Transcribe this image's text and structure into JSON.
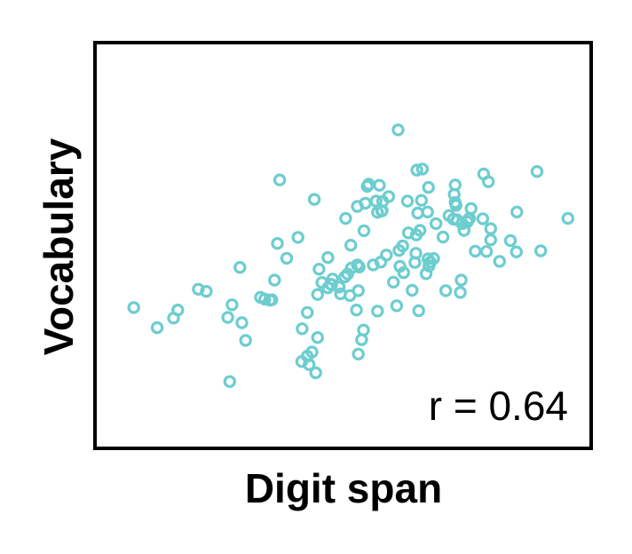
{
  "chart_data": {
    "type": "scatter",
    "title": "",
    "xlabel": "Digit span",
    "ylabel": "Vocabulary",
    "annotation": "r = 0.64",
    "xticks": false,
    "yticks": false,
    "grid": false,
    "legend": "none",
    "point_color": "#6dcdcf",
    "xlim": [
      0,
      100
    ],
    "ylim": [
      0,
      100
    ],
    "points": [
      [
        4.5,
        34.4
      ],
      [
        9.5,
        28.7
      ],
      [
        13.0,
        31.4
      ],
      [
        13.9,
        33.7
      ],
      [
        18.3,
        39.6
      ],
      [
        20.0,
        39.0
      ],
      [
        24.6,
        31.6
      ],
      [
        25.5,
        35.2
      ],
      [
        25.0,
        13.4
      ],
      [
        27.6,
        30.1
      ],
      [
        28.4,
        25.1
      ],
      [
        27.2,
        45.8
      ],
      [
        31.6,
        37.3
      ],
      [
        32.5,
        36.8
      ],
      [
        33.6,
        36.5
      ],
      [
        34.0,
        36.6
      ],
      [
        34.6,
        42.2
      ],
      [
        35.2,
        52.6
      ],
      [
        35.7,
        70.6
      ],
      [
        37.2,
        48.4
      ],
      [
        39.6,
        54.3
      ],
      [
        41.6,
        33.0
      ],
      [
        40.5,
        28.4
      ],
      [
        41.6,
        20.6
      ],
      [
        40.4,
        19.1
      ],
      [
        42.0,
        18.2
      ],
      [
        43.4,
        15.9
      ],
      [
        43.8,
        25.9
      ],
      [
        42.6,
        21.8
      ],
      [
        43.8,
        38.1
      ],
      [
        43.1,
        65.1
      ],
      [
        44.1,
        45.3
      ],
      [
        44.7,
        41.5
      ],
      [
        46.0,
        40.0
      ],
      [
        46.6,
        41.0
      ],
      [
        47.0,
        42.5
      ],
      [
        46.0,
        48.6
      ],
      [
        48.4,
        40.2
      ],
      [
        46.8,
        40.9
      ],
      [
        48.7,
        38.3
      ],
      [
        49.6,
        43.1
      ],
      [
        50.2,
        43.9
      ],
      [
        51.0,
        45.6
      ],
      [
        49.8,
        59.7
      ],
      [
        50.9,
        52.1
      ],
      [
        52.3,
        46.5
      ],
      [
        52.7,
        45.9
      ],
      [
        50.7,
        37.8
      ],
      [
        52.5,
        39.2
      ],
      [
        52.1,
        33.7
      ],
      [
        52.3,
        63.1
      ],
      [
        54.0,
        64.0
      ],
      [
        52.5,
        21.2
      ],
      [
        53.2,
        25.3
      ],
      [
        53.6,
        28.0
      ],
      [
        54.4,
        68.8
      ],
      [
        54.7,
        69.4
      ],
      [
        53.7,
        56.2
      ],
      [
        55.7,
        46.5
      ],
      [
        56.3,
        64.6
      ],
      [
        57.5,
        61.8
      ],
      [
        57.3,
        47.3
      ],
      [
        56.6,
        33.4
      ],
      [
        57.7,
        64.5
      ],
      [
        56.6,
        61.4
      ],
      [
        58.5,
        49.3
      ],
      [
        59.0,
        65.9
      ],
      [
        57.0,
        69.1
      ],
      [
        57.6,
        61.9
      ],
      [
        60.0,
        41.6
      ],
      [
        61.0,
        84.8
      ],
      [
        61.4,
        46.1
      ],
      [
        60.7,
        34.9
      ],
      [
        61.2,
        50.6
      ],
      [
        62.0,
        51.9
      ],
      [
        62.2,
        44.3
      ],
      [
        63.2,
        55.6
      ],
      [
        64.0,
        39.3
      ],
      [
        64.6,
        47.2
      ],
      [
        64.8,
        49.8
      ],
      [
        63.0,
        64.6
      ],
      [
        64.9,
        55.0
      ],
      [
        65.2,
        61.2
      ],
      [
        65.0,
        73.4
      ],
      [
        65.4,
        33.5
      ],
      [
        65.7,
        56.3
      ],
      [
        66.2,
        73.7
      ],
      [
        66.0,
        64.8
      ],
      [
        67.5,
        68.5
      ],
      [
        67.9,
        47.3
      ],
      [
        67.3,
        61.5
      ],
      [
        67.6,
        46.2
      ],
      [
        67.4,
        48.2
      ],
      [
        67.0,
        44.0
      ],
      [
        68.6,
        48.3
      ],
      [
        69.1,
        58.2
      ],
      [
        70.6,
        54.4
      ],
      [
        71.2,
        39.2
      ],
      [
        71.9,
        60.5
      ],
      [
        73.0,
        66.5
      ],
      [
        72.8,
        59.5
      ],
      [
        73.4,
        63.4
      ],
      [
        73.2,
        64.2
      ],
      [
        73.2,
        69.2
      ],
      [
        73.6,
        59.3
      ],
      [
        74.7,
        58.2
      ],
      [
        74.3,
        38.7
      ],
      [
        74.5,
        42.2
      ],
      [
        75.1,
        56.3
      ],
      [
        75.8,
        58.7
      ],
      [
        76.3,
        59.7
      ],
      [
        76.1,
        59.5
      ],
      [
        76.6,
        62.5
      ],
      [
        77.5,
        50.4
      ],
      [
        79.1,
        59.6
      ],
      [
        79.9,
        50.3
      ],
      [
        79.3,
        72.3
      ],
      [
        80.3,
        70.1
      ],
      [
        80.8,
        56.8
      ],
      [
        80.8,
        53.6
      ],
      [
        82.7,
        47.5
      ],
      [
        85.0,
        53.4
      ],
      [
        86.4,
        61.5
      ],
      [
        86.3,
        50.2
      ],
      [
        90.7,
        73.0
      ],
      [
        91.5,
        50.5
      ],
      [
        97.3,
        59.7
      ]
    ]
  }
}
